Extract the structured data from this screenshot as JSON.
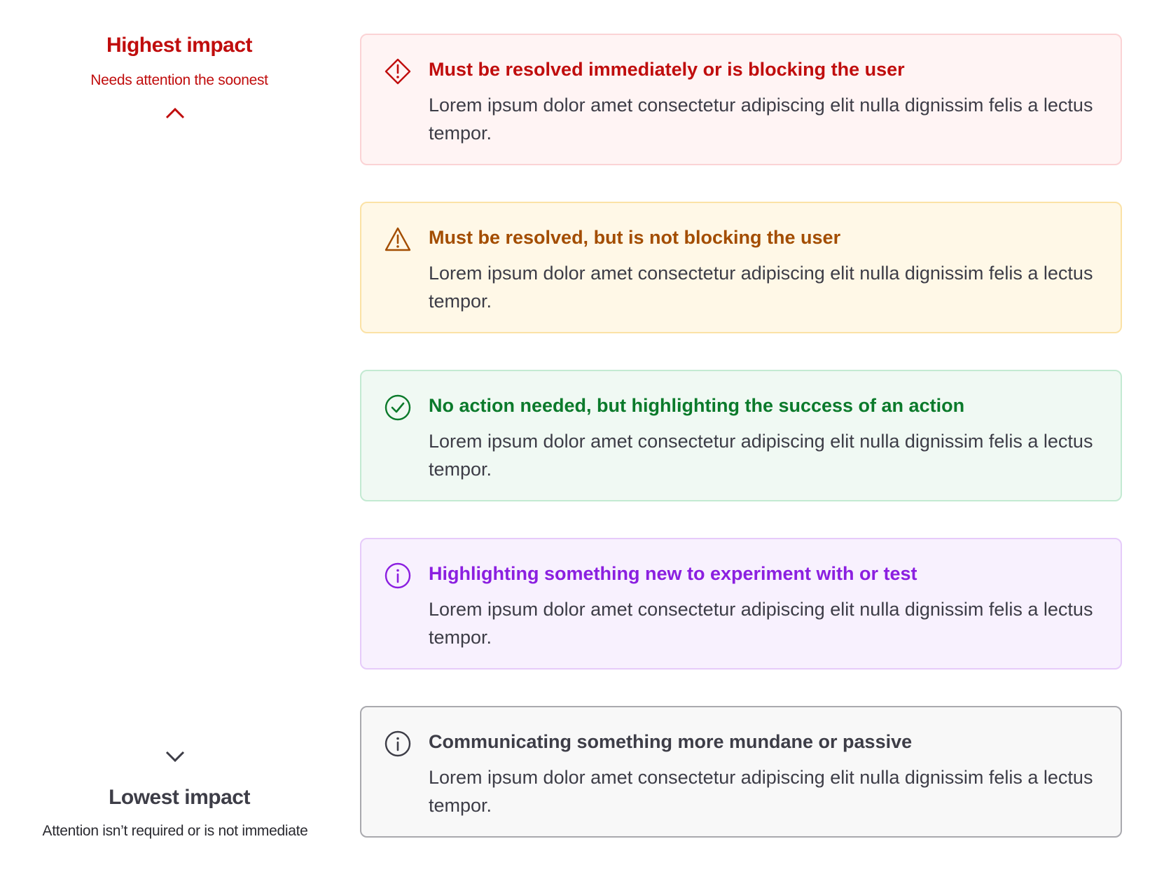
{
  "scale": {
    "top": {
      "title": "Highest impact",
      "subtitle": "Needs attention the soonest",
      "color": "#c00d0d"
    },
    "bottom": {
      "title": "Lowest impact",
      "subtitle": "Attention isn’t required or is not immediate",
      "color": "#3d3d47"
    }
  },
  "cards": [
    {
      "icon": "diamond-exclamation-icon",
      "title": "Must be resolved immediately or is blocking the user",
      "body": "Lorem ipsum dolor amet consectetur adipiscing elit nulla dignissim felis a lectus tempor.",
      "color": "#c00d0d",
      "bg": "#fff4f4",
      "border": "#fbd3d5"
    },
    {
      "icon": "warning-triangle-icon",
      "title": "Must be resolved, but is not blocking the user",
      "body": "Lorem ipsum dolor amet consectetur adipiscing elit nulla dignissim felis a lectus tempor.",
      "color": "#a34d00",
      "bg": "#fff8e7",
      "border": "#fbe2a6"
    },
    {
      "icon": "check-circle-icon",
      "title": "No action needed, but highlighting the success of an action",
      "body": "Lorem ipsum dolor amet consectetur adipiscing elit nulla dignissim felis a lectus tempor.",
      "color": "#0b7a2b",
      "bg": "#f0f9f3",
      "border": "#c3ead2"
    },
    {
      "icon": "info-circle-icon",
      "title": "Highlighting something new to experiment with or test",
      "body": "Lorem ipsum dolor amet consectetur adipiscing elit nulla dignissim felis a lectus tempor.",
      "color": "#8b1fe0",
      "bg": "#f8f1fe",
      "border": "#e6cbfa"
    },
    {
      "icon": "info-circle-icon",
      "title": "Communicating something more mundane or passive",
      "body": "Lorem ipsum dolor amet consectetur adipiscing elit nulla dignissim felis a lectus tempor.",
      "color": "#3d3d47",
      "bg": "#f8f8f8",
      "border": "#a9a9ae"
    }
  ]
}
